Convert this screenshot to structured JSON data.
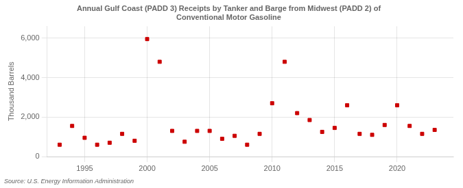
{
  "chart_data": {
    "type": "scatter",
    "title": "Annual Gulf Coast (PADD 3) Receipts by Tanker and Barge from Midwest (PADD 2) of\nConventional Motor Gasoline",
    "ylabel": "Thousand Barrels",
    "annotations": [
      "Source: U.S. Energy Information Administration"
    ],
    "x": [
      1993,
      1994,
      1995,
      1996,
      1997,
      1998,
      1999,
      2000,
      2001,
      2002,
      2003,
      2004,
      2005,
      2006,
      2007,
      2008,
      2009,
      2010,
      2011,
      2012,
      2013,
      2014,
      2015,
      2016,
      2017,
      2018,
      2019,
      2020,
      2021,
      2022,
      2023
    ],
    "values": [
      600,
      1550,
      950,
      600,
      700,
      1150,
      800,
      5950,
      4800,
      1300,
      750,
      1300,
      1300,
      900,
      1050,
      600,
      1150,
      2700,
      4800,
      2200,
      1850,
      1250,
      1450,
      2600,
      1150,
      1100,
      1600,
      2600,
      1550,
      1150,
      1350
    ],
    "color": "#cc0000",
    "marker": "square",
    "xlim": [
      1992.0,
      2024.5
    ],
    "xticks": [
      1995,
      2000,
      2005,
      2010,
      2015,
      2020
    ],
    "ylim": [
      0,
      6600
    ],
    "yticks": [
      0,
      {
        "value": 2000,
        "label": "2,000"
      },
      {
        "value": 4000,
        "label": "4,000"
      },
      {
        "value": 6000,
        "label": "6,000"
      }
    ],
    "grid": true
  }
}
